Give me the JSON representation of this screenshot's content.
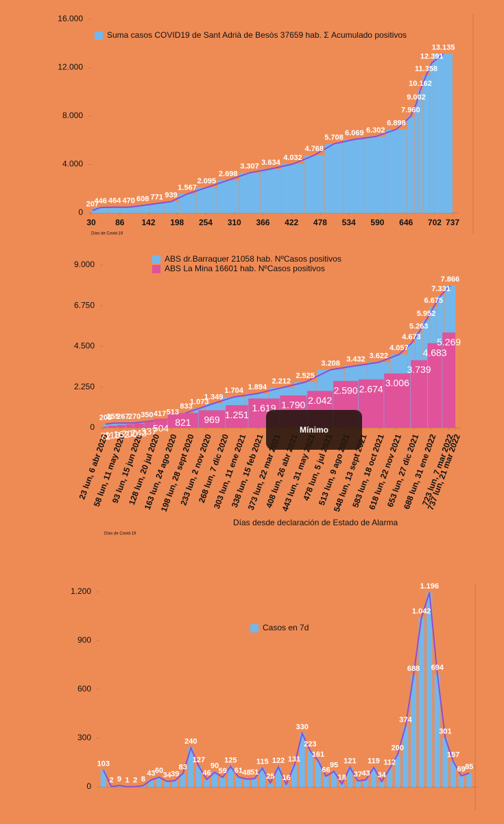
{
  "chart_data": [
    {
      "type": "bar",
      "legend": "Suma casos COVID19 de Sant Adrià de Besòs   37659 hab.  Σ Acumulado positivos",
      "annotation": "Días de Covid-19",
      "line_color": "#8a4fd6",
      "series": [
        {
          "name": "Suma casos COVID19 de Sant Adrià de Besòs   37659 hab.  Σ Acumulado positivos",
          "color": "#72b8ec",
          "x": [
            34,
            62,
            89,
            117,
            144,
            172,
            200,
            235,
            276,
            319,
            360,
            402,
            446,
            486,
            523,
            566,
            606,
            647,
            662,
            669,
            678,
            692,
            700,
            737
          ],
          "values": [
            207,
            446,
            464,
            470,
            608,
            771,
            939,
            1567,
            2095,
            2698,
            3307,
            3634,
            4032,
            4768,
            5708,
            6069,
            6302,
            6898,
            7960,
            9002,
            10162,
            11358,
            12391,
            13135
          ],
          "value_labels": [
            "207",
            "446",
            "464",
            "470",
            "608",
            "771",
            "939",
            "1.567",
            "2.095",
            "2.698",
            "3.307",
            "3.634",
            "4.032",
            "4.768",
            "5.708",
            "6.069",
            "6.302",
            "6.898",
            "7.960",
            "9.002",
            "10.162",
            "11.358",
            "12.391",
            "13.135"
          ]
        }
      ],
      "xlim": [
        30,
        737
      ],
      "xticks": [
        30,
        86,
        142,
        198,
        254,
        310,
        366,
        422,
        478,
        534,
        590,
        646,
        702,
        737
      ],
      "ylim": [
        0,
        16000
      ],
      "yticks": [
        0,
        {
          "value": 4000,
          "label": "4.000"
        },
        {
          "value": 8000,
          "label": "8.000"
        },
        {
          "value": 12000,
          "label": "12.000"
        },
        {
          "value": 16000,
          "label": "16.000"
        }
      ]
    },
    {
      "type": "bar",
      "annotation": "Días de Covid-19",
      "x_label": "Días desde declaración de Estado de Alarma",
      "line_color": "#8a4fd6",
      "series": [
        {
          "name": "ABS dr.Barraquer  21058  hab. NºCasos positivos",
          "color": "#72b8ec",
          "x": [
            33,
            53,
            74,
            99,
            125,
            151,
            177,
            206,
            230,
            264,
            312,
            359,
            409,
            456,
            512,
            558,
            605,
            640,
            655,
            670,
            685,
            700,
            715,
            737
          ],
          "values": [
            205,
            255,
            267,
            270,
            350,
            417,
            513,
            833,
            1073,
            1349,
            1704,
            1894,
            2212,
            2525,
            3208,
            3432,
            3622,
            4057,
            4673,
            5263,
            5952,
            6675,
            7331,
            7866
          ],
          "value_labels": [
            "205",
            "255",
            "267",
            "270",
            "350",
            "417",
            "513",
            "833",
            "1.073",
            "1.349",
            "1.704",
            "1.894",
            "2.212",
            "2.525",
            "3.208",
            "3.432",
            "3.622",
            "4.057",
            "4.673",
            "5.263",
            "5.952",
            "6.675",
            "7.331",
            "7.866"
          ]
        },
        {
          "name": "ABS La Mina 16601  hab.  NºCasos positivos",
          "color": "#e0529a",
          "x": [
            33,
            51,
            69,
            85,
            106,
            126,
            154,
            216,
            271,
            317,
            381,
            436,
            489,
            540,
            592,
            646,
            680,
            710,
            737
          ],
          "values": [
            72,
            118,
            162,
            200,
            243,
            337,
            504,
            821,
            969,
            1251,
            1619,
            1790,
            2042,
            2590,
            2674,
            3006,
            3739,
            4683,
            5269
          ],
          "value_labels": [
            "72",
            "118",
            "162",
            "200",
            "243",
            "337",
            "504",
            "821",
            "969",
            "1.251",
            "1.619",
            "1.790",
            "2.042",
            "2.590",
            "2.674",
            "3.006",
            "3.739",
            "4.683",
            "5.269"
          ]
        }
      ],
      "xlim": [
        23,
        737
      ],
      "xticks": [
        {
          "value": 23,
          "label": "23 lun, 6 abr 2020"
        },
        {
          "value": 58,
          "label": "58 lun, 11 may 2020"
        },
        {
          "value": 93,
          "label": "93 lun, 15 jun 2020"
        },
        {
          "value": 128,
          "label": "128 lun, 20 jul 2020"
        },
        {
          "value": 163,
          "label": "163 lun, 24 ago 2020"
        },
        {
          "value": 198,
          "label": "198 lun, 28 sept 2020"
        },
        {
          "value": 233,
          "label": "233 lun, 2 nov 2020"
        },
        {
          "value": 268,
          "label": "268 lun, 7 dic 2020"
        },
        {
          "value": 303,
          "label": "303 lun, 11 ene 2021"
        },
        {
          "value": 338,
          "label": "338 lun, 15 feb 2021"
        },
        {
          "value": 373,
          "label": "373 lun, 22 mar 2021"
        },
        {
          "value": 408,
          "label": "408 lun, 26 abr 2021"
        },
        {
          "value": 443,
          "label": "443 lun, 31 may 2021"
        },
        {
          "value": 478,
          "label": "478 lun, 5 jul 2021"
        },
        {
          "value": 513,
          "label": "513 lun, 9 ago 2021"
        },
        {
          "value": 548,
          "label": "548 lun, 13 sept 2021"
        },
        {
          "value": 583,
          "label": "583 lun, 18 oct 2021"
        },
        {
          "value": 618,
          "label": "618 lun, 22 nov 2021"
        },
        {
          "value": 653,
          "label": "653 lun, 27 dic 2021"
        },
        {
          "value": 688,
          "label": "688 lun, 31 ene 2022"
        },
        {
          "value": 723,
          "label": "723 lun, 7 mar 2022"
        },
        {
          "value": 737,
          "label": "737 lun, 21 mar 2022"
        }
      ],
      "ylim": [
        0,
        9000
      ],
      "yticks": [
        0,
        {
          "value": 2250,
          "label": "2.250"
        },
        {
          "value": 4500,
          "label": "4.500"
        },
        {
          "value": 6750,
          "label": "6.750"
        },
        {
          "value": 9000,
          "label": "9.000"
        }
      ]
    },
    {
      "type": "bar",
      "line_color": "#8a4fd6",
      "series": [
        {
          "name": "Casos en  7d",
          "color": "#72b8ec",
          "values": [
            103,
            2,
            9,
            1,
            2,
            8,
            43,
            60,
            34,
            39,
            83,
            240,
            127,
            46,
            90,
            59,
            125,
            61,
            48,
            51,
            115,
            25,
            122,
            16,
            131,
            330,
            223,
            161,
            66,
            95,
            18,
            121,
            37,
            43,
            119,
            34,
            112,
            200,
            374,
            688,
            1042,
            1196,
            694,
            301,
            157,
            69,
            85
          ],
          "value_labels": [
            "103",
            "2",
            "9",
            "1",
            "2",
            "8",
            "43",
            "60",
            "34",
            "39",
            "83",
            "240",
            "127",
            "46",
            "90",
            "59",
            "125",
            "61",
            "48",
            "51",
            "115",
            "25",
            "122",
            "16",
            "131",
            "330",
            "223",
            "161",
            "66",
            "95",
            "18",
            "121",
            "37",
            "43",
            "119",
            "34",
            "112",
            "200",
            "374",
            "688",
            "1.042",
            "1.196",
            "694",
            "301",
            "157",
            "69",
            "85"
          ]
        }
      ],
      "ylim": [
        0,
        1200
      ],
      "yticks": [
        0,
        300,
        600,
        900,
        {
          "value": 1200,
          "label": "1.200"
        }
      ]
    }
  ],
  "overlay": {
    "label": "Mínimo"
  }
}
